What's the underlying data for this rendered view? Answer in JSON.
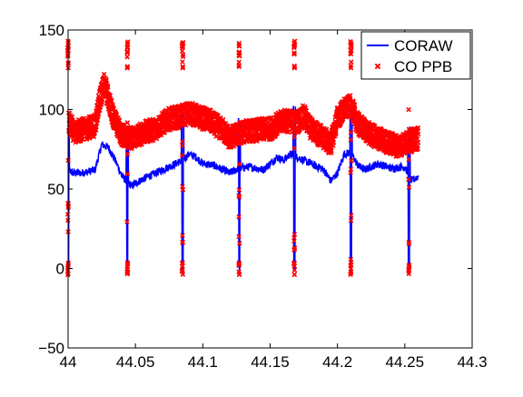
{
  "chart_data": {
    "type": "line",
    "title": "",
    "xlabel": "",
    "ylabel": "",
    "xlim": [
      44,
      44.3
    ],
    "ylim": [
      -50,
      150
    ],
    "x_ticks": [
      44,
      44.05,
      44.1,
      44.15,
      44.2,
      44.25,
      44.3
    ],
    "x_tick_labels": [
      "44",
      "44.05",
      "44.1",
      "44.15",
      "44.2",
      "44.25",
      "44.3"
    ],
    "y_ticks": [
      -50,
      0,
      50,
      100,
      150
    ],
    "y_tick_labels": [
      "−50",
      "0",
      "50",
      "100",
      "150"
    ],
    "grid": false,
    "legend_position": "top-right",
    "x_range": [
      44,
      44.26
    ],
    "drop_x": [
      44.0,
      44.044,
      44.085,
      44.127,
      44.168,
      44.21,
      44.253
    ],
    "series": [
      {
        "name": "CORAW",
        "style": "line",
        "color": "#0000ff",
        "baseline": [
          [
            44.0,
            62
          ],
          [
            44.004,
            60
          ],
          [
            44.01,
            60
          ],
          [
            44.02,
            62
          ],
          [
            44.025,
            78
          ],
          [
            44.03,
            76
          ],
          [
            44.035,
            68
          ],
          [
            44.04,
            58
          ],
          [
            44.047,
            52
          ],
          [
            44.055,
            56
          ],
          [
            44.065,
            60
          ],
          [
            44.075,
            64
          ],
          [
            44.085,
            68
          ],
          [
            44.09,
            72
          ],
          [
            44.095,
            70
          ],
          [
            44.1,
            66
          ],
          [
            44.108,
            65
          ],
          [
            44.115,
            62
          ],
          [
            44.12,
            60
          ],
          [
            44.127,
            63
          ],
          [
            44.135,
            64
          ],
          [
            44.145,
            62
          ],
          [
            44.15,
            66
          ],
          [
            44.155,
            70
          ],
          [
            44.16,
            68
          ],
          [
            44.165,
            72
          ],
          [
            44.17,
            70
          ],
          [
            44.18,
            66
          ],
          [
            44.19,
            62
          ],
          [
            44.195,
            55
          ],
          [
            44.2,
            60
          ],
          [
            44.205,
            72
          ],
          [
            44.21,
            73
          ],
          [
            44.215,
            65
          ],
          [
            44.22,
            62
          ],
          [
            44.23,
            66
          ],
          [
            44.24,
            63
          ],
          [
            44.25,
            64
          ],
          [
            44.255,
            55
          ],
          [
            44.26,
            58
          ]
        ]
      },
      {
        "name": "CO PPB",
        "style": "marker",
        "marker": "x",
        "color": "#ff0000",
        "baseline": [
          [
            44.0,
            92
          ],
          [
            44.005,
            86
          ],
          [
            44.01,
            87
          ],
          [
            44.02,
            90
          ],
          [
            44.023,
            105
          ],
          [
            44.027,
            116
          ],
          [
            44.032,
            100
          ],
          [
            44.036,
            90
          ],
          [
            44.04,
            84
          ],
          [
            44.047,
            82
          ],
          [
            44.055,
            85
          ],
          [
            44.065,
            88
          ],
          [
            44.075,
            94
          ],
          [
            44.085,
            96
          ],
          [
            44.09,
            98
          ],
          [
            44.095,
            96
          ],
          [
            44.105,
            93
          ],
          [
            44.115,
            87
          ],
          [
            44.12,
            82
          ],
          [
            44.13,
            86
          ],
          [
            44.14,
            87
          ],
          [
            44.15,
            88
          ],
          [
            44.16,
            93
          ],
          [
            44.17,
            92
          ],
          [
            44.175,
            96
          ],
          [
            44.18,
            88
          ],
          [
            44.19,
            82
          ],
          [
            44.195,
            78
          ],
          [
            44.2,
            95
          ],
          [
            44.205,
            100
          ],
          [
            44.21,
            102
          ],
          [
            44.215,
            91
          ],
          [
            44.225,
            84
          ],
          [
            44.235,
            80
          ],
          [
            44.245,
            77
          ],
          [
            44.26,
            82
          ]
        ]
      }
    ]
  }
}
